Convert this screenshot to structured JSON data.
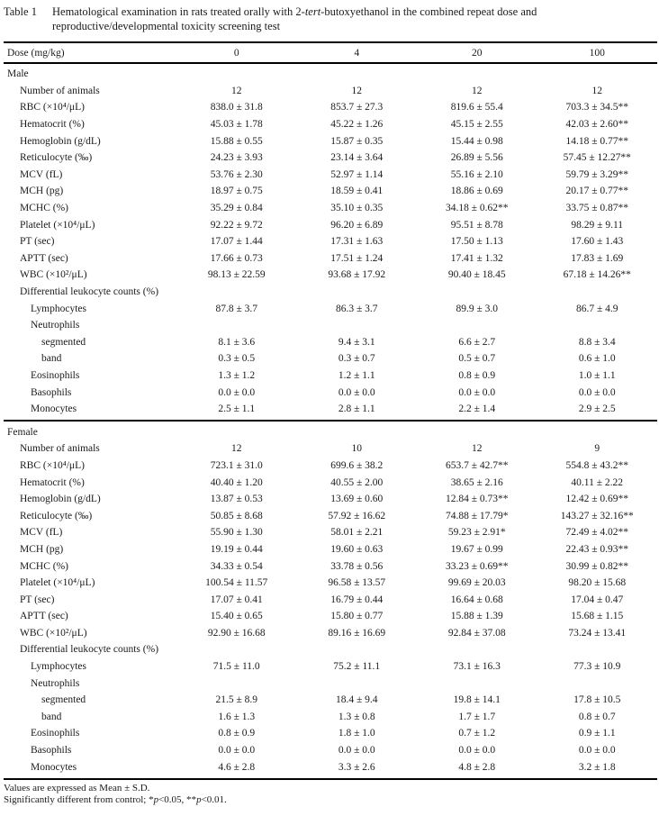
{
  "title": {
    "label": "Table 1",
    "pre": "Hematological examination in rats treated orally with 2-",
    "italic": "tert",
    "post": "-butoxyethanol in the combined repeat dose and reproductive/developmental toxicity screening test"
  },
  "header": {
    "label": "Dose (mg/kg)",
    "doses": [
      "0",
      "4",
      "20",
      "100"
    ]
  },
  "sections": [
    {
      "name": "Male",
      "rows": [
        {
          "label": "Number of animals",
          "indent": 1,
          "values": [
            "12",
            "12",
            "12",
            "12"
          ]
        },
        {
          "label": "RBC (×10⁴/μL)",
          "indent": 1,
          "values": [
            "838.0 ± 31.8",
            "853.7 ± 27.3",
            "819.6 ± 55.4",
            "703.3 ± 34.5**"
          ]
        },
        {
          "label": "Hematocrit (%)",
          "indent": 1,
          "values": [
            "45.03 ± 1.78",
            "45.22 ± 1.26",
            "45.15 ± 2.55",
            "42.03 ± 2.60**"
          ]
        },
        {
          "label": "Hemoglobin (g/dL)",
          "indent": 1,
          "values": [
            "15.88 ± 0.55",
            "15.87 ± 0.35",
            "15.44 ± 0.98",
            "14.18 ± 0.77**"
          ]
        },
        {
          "label": "Reticulocyte (‰)",
          "indent": 1,
          "values": [
            "24.23 ± 3.93",
            "23.14 ± 3.64",
            "26.89 ± 5.56",
            "57.45 ± 12.27**"
          ]
        },
        {
          "label": "MCV (fL)",
          "indent": 1,
          "values": [
            "53.76 ± 2.30",
            "52.97 ± 1.14",
            "55.16 ± 2.10",
            "59.79 ± 3.29**"
          ]
        },
        {
          "label": "MCH (pg)",
          "indent": 1,
          "values": [
            "18.97 ± 0.75",
            "18.59 ± 0.41",
            "18.86 ± 0.69",
            "20.17 ± 0.77**"
          ]
        },
        {
          "label": "MCHC (%)",
          "indent": 1,
          "values": [
            "35.29 ± 0.84",
            "35.10 ± 0.35",
            "34.18 ± 0.62**",
            "33.75 ± 0.87**"
          ]
        },
        {
          "label": "Platelet (×10⁴/μL)",
          "indent": 1,
          "values": [
            "92.22 ± 9.72",
            "96.20 ± 6.89",
            "95.51 ± 8.78",
            "98.29 ± 9.11"
          ]
        },
        {
          "label": "PT (sec)",
          "indent": 1,
          "values": [
            "17.07 ± 1.44",
            "17.31 ± 1.63",
            "17.50 ± 1.13",
            "17.60 ± 1.43"
          ]
        },
        {
          "label": "APTT (sec)",
          "indent": 1,
          "values": [
            "17.66 ± 0.73",
            "17.51 ± 1.24",
            "17.41 ± 1.32",
            "17.83 ± 1.69"
          ]
        },
        {
          "label": "WBC (×10²/μL)",
          "indent": 1,
          "values": [
            "98.13 ± 22.59",
            "93.68 ± 17.92",
            "90.40 ± 18.45",
            "67.18 ± 14.26**"
          ]
        },
        {
          "label": "Differential leukocyte counts (%)",
          "indent": 1,
          "values": [
            "",
            "",
            "",
            ""
          ]
        },
        {
          "label": "Lymphocytes",
          "indent": 2,
          "values": [
            "87.8 ± 3.7",
            "86.3 ± 3.7",
            "89.9 ± 3.0",
            "86.7 ± 4.9"
          ]
        },
        {
          "label": "Neutrophils",
          "indent": 2,
          "values": [
            "",
            "",
            "",
            ""
          ]
        },
        {
          "label": "segmented",
          "indent": 3,
          "values": [
            "8.1 ± 3.6",
            "9.4 ± 3.1",
            "6.6 ± 2.7",
            "8.8 ± 3.4"
          ]
        },
        {
          "label": "band",
          "indent": 3,
          "values": [
            "0.3 ± 0.5",
            "0.3 ± 0.7",
            "0.5 ± 0.7",
            "0.6 ± 1.0"
          ]
        },
        {
          "label": "Eosinophils",
          "indent": 2,
          "values": [
            "1.3 ± 1.2",
            "1.2 ± 1.1",
            "0.8 ± 0.9",
            "1.0 ± 1.1"
          ]
        },
        {
          "label": "Basophils",
          "indent": 2,
          "values": [
            "0.0 ± 0.0",
            "0.0 ± 0.0",
            "0.0 ± 0.0",
            "0.0 ± 0.0"
          ]
        },
        {
          "label": "Monocytes",
          "indent": 2,
          "values": [
            "2.5 ± 1.1",
            "2.8 ± 1.1",
            "2.2 ± 1.4",
            "2.9 ± 2.5"
          ]
        }
      ]
    },
    {
      "name": "Female",
      "rows": [
        {
          "label": "Number of animals",
          "indent": 1,
          "values": [
            "12",
            "10",
            "12",
            "9"
          ]
        },
        {
          "label": "RBC (×10⁴/μL)",
          "indent": 1,
          "values": [
            "723.1 ± 31.0",
            "699.6 ± 38.2",
            "653.7 ± 42.7**",
            "554.8 ± 43.2**"
          ]
        },
        {
          "label": "Hematocrit (%)",
          "indent": 1,
          "values": [
            "40.40 ± 1.20",
            "40.55 ± 2.00",
            "38.65 ± 2.16",
            "40.11 ± 2.22"
          ]
        },
        {
          "label": "Hemoglobin (g/dL)",
          "indent": 1,
          "values": [
            "13.87 ± 0.53",
            "13.69 ± 0.60",
            "12.84 ± 0.73**",
            "12.42 ± 0.69**"
          ]
        },
        {
          "label": "Reticulocyte (‰)",
          "indent": 1,
          "values": [
            "50.85 ± 8.68",
            "57.92 ± 16.62",
            "74.88 ± 17.79*",
            "143.27 ± 32.16**"
          ]
        },
        {
          "label": "MCV (fL)",
          "indent": 1,
          "values": [
            "55.90 ± 1.30",
            "58.01 ± 2.21",
            "59.23 ± 2.91*",
            "72.49 ± 4.02**"
          ]
        },
        {
          "label": "MCH (pg)",
          "indent": 1,
          "values": [
            "19.19 ± 0.44",
            "19.60 ± 0.63",
            "19.67 ± 0.99",
            "22.43 ± 0.93**"
          ]
        },
        {
          "label": "MCHC (%)",
          "indent": 1,
          "values": [
            "34.33 ± 0.54",
            "33.78 ± 0.56",
            "33.23 ± 0.69**",
            "30.99 ± 0.82**"
          ]
        },
        {
          "label": "Platelet (×10⁴/μL)",
          "indent": 1,
          "values": [
            "100.54 ± 11.57",
            "96.58 ± 13.57",
            "99.69 ± 20.03",
            "98.20 ± 15.68"
          ]
        },
        {
          "label": "PT (sec)",
          "indent": 1,
          "values": [
            "17.07 ± 0.41",
            "16.79 ± 0.44",
            "16.64 ± 0.68",
            "17.04 ± 0.47"
          ]
        },
        {
          "label": "APTT (sec)",
          "indent": 1,
          "values": [
            "15.40 ± 0.65",
            "15.80 ± 0.77",
            "15.88 ± 1.39",
            "15.68 ± 1.15"
          ]
        },
        {
          "label": "WBC (×10²/μL)",
          "indent": 1,
          "values": [
            "92.90 ± 16.68",
            "89.16 ± 16.69",
            "92.84 ± 37.08",
            "73.24 ± 13.41"
          ]
        },
        {
          "label": "Differential leukocyte counts (%)",
          "indent": 1,
          "values": [
            "",
            "",
            "",
            ""
          ]
        },
        {
          "label": "Lymphocytes",
          "indent": 2,
          "values": [
            "71.5 ± 11.0",
            "75.2 ± 11.1",
            "73.1 ± 16.3",
            "77.3 ± 10.9"
          ]
        },
        {
          "label": "Neutrophils",
          "indent": 2,
          "values": [
            "",
            "",
            "",
            ""
          ]
        },
        {
          "label": "segmented",
          "indent": 3,
          "values": [
            "21.5 ± 8.9",
            "18.4 ± 9.4",
            "19.8 ± 14.1",
            "17.8 ± 10.5"
          ]
        },
        {
          "label": "band",
          "indent": 3,
          "values": [
            "1.6 ± 1.3",
            "1.3 ± 0.8",
            "1.7 ± 1.7",
            "0.8 ± 0.7"
          ]
        },
        {
          "label": "Eosinophils",
          "indent": 2,
          "values": [
            "0.8 ± 0.9",
            "1.8 ± 1.0",
            "0.7 ± 1.2",
            "0.9 ± 1.1"
          ]
        },
        {
          "label": "Basophils",
          "indent": 2,
          "values": [
            "0.0 ± 0.0",
            "0.0 ± 0.0",
            "0.0 ± 0.0",
            "0.0 ± 0.0"
          ]
        },
        {
          "label": "Monocytes",
          "indent": 2,
          "values": [
            "4.6 ± 2.8",
            "3.3 ± 2.6",
            "4.8 ± 2.8",
            "3.2 ± 1.8"
          ]
        }
      ]
    }
  ],
  "footnotes": {
    "line1": "Values are expressed as Mean ± S.D.",
    "line2_pre": "Significantly different from control; *",
    "line2_p1": "p",
    "line2_mid": "<0.05, **",
    "line2_p2": "p",
    "line2_post": "<0.01."
  }
}
